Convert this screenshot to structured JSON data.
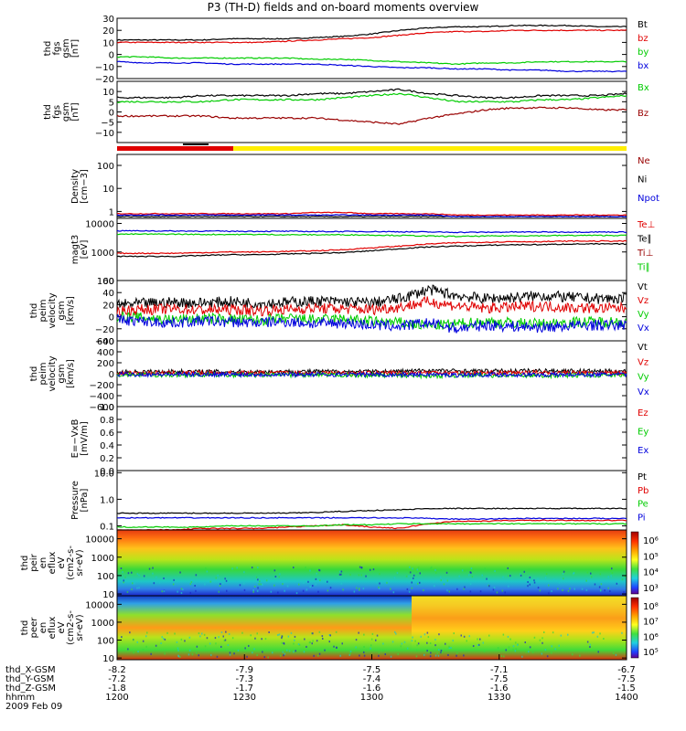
{
  "title": "P3 (TH-D) fields and on-board moments overview",
  "date_label": "2009 Feb 09",
  "colors": {
    "black": "#000000",
    "red": "#e00000",
    "green": "#00cc00",
    "blue": "#0000dd",
    "yellow": "#ffee00",
    "darkred": "#990000"
  },
  "xaxis": {
    "rows": [
      {
        "label": "thd_X-GSM",
        "values": [
          "-8.2",
          "-7.9",
          "-7.5",
          "-7.1",
          "-6.7"
        ]
      },
      {
        "label": "thd_Y-GSM",
        "values": [
          "-7.2",
          "-7.3",
          "-7.4",
          "-7.5",
          "-7.5"
        ]
      },
      {
        "label": "thd_Z-GSM",
        "values": [
          "-1.8",
          "-1.7",
          "-1.6",
          "-1.6",
          "-1.5"
        ]
      },
      {
        "label": "hhmm",
        "values": [
          "1200",
          "1230",
          "1300",
          "1330",
          "1400"
        ]
      }
    ]
  },
  "chart_data": [
    {
      "type": "line",
      "ylabel": [
        "thd",
        "fgs",
        "gsm",
        "[nT]"
      ],
      "ylim": [
        -20,
        30
      ],
      "yticks": [
        "30",
        "20",
        "10",
        "0",
        "−10",
        "−20"
      ],
      "legend": [
        {
          "name": "Bt",
          "color": "black"
        },
        {
          "name": "bz",
          "color": "red"
        },
        {
          "name": "by",
          "color": "green"
        },
        {
          "name": "bx",
          "color": "blue"
        }
      ],
      "series": [
        {
          "name": "Bt",
          "color": "black",
          "values": [
            12,
            12,
            12,
            12,
            13,
            13,
            13,
            14,
            15,
            17,
            20,
            22,
            23,
            23,
            24,
            24,
            24,
            23,
            23
          ]
        },
        {
          "name": "bz",
          "color": "red",
          "values": [
            10,
            10,
            10,
            10,
            10,
            10,
            11,
            12,
            13,
            14,
            16,
            18,
            19,
            19,
            20,
            20,
            20,
            20,
            20
          ]
        },
        {
          "name": "by",
          "color": "green",
          "values": [
            -2,
            -2,
            -3,
            -3,
            -3,
            -3,
            -3,
            -4,
            -4,
            -5,
            -6,
            -7,
            -8,
            -7,
            -7,
            -6,
            -6,
            -6,
            -6
          ]
        },
        {
          "name": "bx",
          "color": "blue",
          "values": [
            -6,
            -7,
            -7,
            -7,
            -8,
            -8,
            -8,
            -8,
            -9,
            -10,
            -11,
            -11,
            -12,
            -12,
            -13,
            -13,
            -14,
            -14,
            -14
          ]
        }
      ]
    },
    {
      "type": "line",
      "ylabel": [
        "thd",
        "fgs",
        "gsm",
        "[nT]"
      ],
      "ylim": [
        -15,
        15
      ],
      "yticks": [
        "10",
        "5",
        "0",
        "−5",
        "−10"
      ],
      "legend": [
        {
          "name": "Bx",
          "color": "green"
        },
        {
          "name": "Bz",
          "color": "darkred"
        }
      ],
      "series": [
        {
          "name": "Bt",
          "color": "black",
          "values": [
            7,
            7,
            7,
            8,
            8,
            8,
            8,
            9,
            9,
            10,
            11,
            9,
            8,
            7,
            7,
            8,
            8,
            8,
            9
          ]
        },
        {
          "name": "Bx",
          "color": "green",
          "values": [
            5,
            5,
            5,
            5,
            6,
            6,
            6,
            6,
            7,
            8,
            9,
            7,
            5,
            5,
            5,
            6,
            6,
            7,
            8
          ]
        },
        {
          "name": "Bz",
          "color": "darkred",
          "values": [
            -2,
            -2,
            -2,
            -2,
            -3,
            -3,
            -3,
            -3,
            -4,
            -5,
            -6,
            -3,
            -1,
            1,
            2,
            2,
            2,
            1,
            1
          ]
        }
      ]
    },
    {
      "type": "line",
      "ylabel": [
        "Density",
        "[cm−3]"
      ],
      "ylim": [
        0.5,
        300
      ],
      "scale": "log",
      "yticks": [
        "100",
        "10",
        "1"
      ],
      "legend": [
        {
          "name": "Ne",
          "color": "darkred"
        },
        {
          "name": "Ni",
          "color": "black"
        },
        {
          "name": "Npot",
          "color": "blue"
        }
      ],
      "series": [
        {
          "name": "Ne",
          "color": "red",
          "values": [
            0.8,
            0.8,
            0.8,
            0.8,
            0.8,
            0.8,
            0.8,
            0.9,
            0.9,
            0.8,
            0.8,
            0.8,
            0.7,
            0.7,
            0.7,
            0.7,
            0.7,
            0.7,
            0.7
          ]
        },
        {
          "name": "Ni",
          "color": "black",
          "values": [
            0.6,
            0.6,
            0.6,
            0.6,
            0.6,
            0.6,
            0.6,
            0.6,
            0.6,
            0.6,
            0.6,
            0.6,
            0.6,
            0.6,
            0.6,
            0.6,
            0.6,
            0.6,
            0.6
          ]
        },
        {
          "name": "Npot",
          "color": "blue",
          "values": [
            0.7,
            0.7,
            0.7,
            0.7,
            0.7,
            0.7,
            0.7,
            0.7,
            0.7,
            0.7,
            0.7,
            0.7,
            0.6,
            0.6,
            0.6,
            0.6,
            0.6,
            0.6,
            0.6
          ]
        }
      ]
    },
    {
      "type": "line",
      "ylabel": [
        "magt3",
        "[eV]"
      ],
      "ylim": [
        100,
        15000
      ],
      "scale": "log",
      "yticks": [
        "10000",
        "1000",
        "100"
      ],
      "legend": [
        {
          "name": "Te⊥",
          "color": "red"
        },
        {
          "name": "Te∥",
          "color": "black"
        },
        {
          "name": "Ti⊥",
          "color": "darkred"
        },
        {
          "name": "Ti∥",
          "color": "green"
        }
      ],
      "series": [
        {
          "name": "Ti⊥",
          "color": "blue",
          "values": [
            5500,
            5500,
            5400,
            5400,
            5300,
            5300,
            5300,
            5200,
            5200,
            5200,
            5100,
            5000,
            4900,
            4900,
            5000,
            5000,
            5000,
            5000,
            5000
          ]
        },
        {
          "name": "Ti∥",
          "color": "green",
          "values": [
            4200,
            4200,
            4200,
            4100,
            4100,
            4100,
            4000,
            4000,
            4000,
            3900,
            3800,
            3600,
            3500,
            3600,
            3700,
            3700,
            3800,
            3800,
            3800
          ]
        },
        {
          "name": "Te∥",
          "color": "black",
          "values": [
            700,
            700,
            700,
            750,
            800,
            800,
            850,
            900,
            950,
            1100,
            1300,
            1500,
            1600,
            1700,
            1800,
            1800,
            1900,
            1900,
            1900
          ]
        },
        {
          "name": "Te⊥",
          "color": "red",
          "values": [
            900,
            900,
            900,
            950,
            1000,
            1000,
            1050,
            1100,
            1200,
            1400,
            1600,
            1900,
            2100,
            2200,
            2300,
            2300,
            2400,
            2400,
            2400
          ]
        }
      ]
    },
    {
      "type": "line",
      "ylabel": [
        "thd",
        "peim",
        "velocity",
        "gsm",
        "[km/s]"
      ],
      "ylim": [
        -40,
        60
      ],
      "yticks": [
        "60",
        "40",
        "20",
        "0",
        "−20",
        "−40"
      ],
      "legend": [
        {
          "name": "Vt",
          "color": "black"
        },
        {
          "name": "Vz",
          "color": "red"
        },
        {
          "name": "Vy",
          "color": "green"
        },
        {
          "name": "Vx",
          "color": "blue"
        }
      ],
      "series": [
        {
          "name": "Vt",
          "color": "black",
          "values": [
            20,
            22,
            24,
            23,
            25,
            22,
            24,
            26,
            25,
            23,
            30,
            45,
            35,
            30,
            32,
            35,
            32,
            30,
            30
          ]
        },
        {
          "name": "Vz",
          "color": "red",
          "values": [
            10,
            12,
            13,
            11,
            12,
            10,
            12,
            14,
            13,
            12,
            16,
            25,
            18,
            14,
            16,
            18,
            15,
            14,
            14
          ]
        },
        {
          "name": "Vy",
          "color": "green",
          "values": [
            0,
            -2,
            -5,
            -3,
            -4,
            -6,
            -3,
            -5,
            -4,
            -8,
            -10,
            -15,
            -12,
            -8,
            -10,
            -12,
            -9,
            -8,
            -8
          ]
        },
        {
          "name": "Vx",
          "color": "blue",
          "values": [
            -5,
            -8,
            -10,
            -7,
            -9,
            -10,
            -8,
            -12,
            -10,
            -14,
            -16,
            -10,
            -20,
            -14,
            -16,
            -18,
            -15,
            -14,
            -14
          ]
        }
      ]
    },
    {
      "type": "line",
      "ylabel": [
        "thd",
        "peim",
        "velocity",
        "gsm",
        "[km/s]"
      ],
      "ylim": [
        -600,
        600
      ],
      "yticks": [
        "600",
        "400",
        "200",
        "0",
        "−200",
        "−400",
        "−600"
      ],
      "legend": [
        {
          "name": "Vt",
          "color": "black"
        },
        {
          "name": "Vz",
          "color": "red"
        },
        {
          "name": "Vy",
          "color": "green"
        },
        {
          "name": "Vx",
          "color": "blue"
        }
      ],
      "series": [
        {
          "name": "Vt",
          "color": "black",
          "values": [
            30,
            35,
            40,
            35,
            38,
            35,
            38,
            40,
            38,
            36,
            45,
            60,
            50,
            45,
            50,
            55,
            50,
            45,
            45
          ]
        },
        {
          "name": "Vz",
          "color": "red",
          "values": [
            10,
            12,
            14,
            12,
            13,
            12,
            13,
            15,
            14,
            13,
            16,
            24,
            18,
            15,
            17,
            18,
            16,
            15,
            15
          ]
        },
        {
          "name": "Vy",
          "color": "green",
          "values": [
            -20,
            -22,
            -25,
            -22,
            -24,
            -25,
            -22,
            -26,
            -24,
            -28,
            -30,
            -40,
            -35,
            -30,
            -32,
            -35,
            -30,
            -28,
            -28
          ]
        },
        {
          "name": "Vx",
          "color": "blue",
          "values": [
            -10,
            -12,
            -14,
            -12,
            -13,
            -14,
            -12,
            -15,
            -14,
            -16,
            -18,
            -15,
            -22,
            -16,
            -18,
            -20,
            -17,
            -16,
            -16
          ]
        }
      ]
    },
    {
      "type": "line",
      "ylabel": [
        "E=−VxB",
        "[mV/m]"
      ],
      "ylim": [
        0,
        1
      ],
      "yticks": [
        "1.0",
        "0.8",
        "0.6",
        "0.4",
        "0.2",
        "0.0"
      ],
      "legend": [
        {
          "name": "Ez",
          "color": "red"
        },
        {
          "name": "Ey",
          "color": "green"
        },
        {
          "name": "Ex",
          "color": "blue"
        }
      ],
      "series": []
    },
    {
      "type": "line",
      "ylabel": [
        "Pressure",
        "[nPa]"
      ],
      "ylim": [
        0.07,
        12
      ],
      "scale": "log",
      "yticks": [
        "10.0",
        "1.0",
        "0.1"
      ],
      "legend": [
        {
          "name": "Pt",
          "color": "black"
        },
        {
          "name": "Pb",
          "color": "red"
        },
        {
          "name": "Pe",
          "color": "green"
        },
        {
          "name": "Pi",
          "color": "blue"
        }
      ],
      "series": [
        {
          "name": "Pt",
          "color": "black",
          "values": [
            0.3,
            0.3,
            0.3,
            0.3,
            0.3,
            0.3,
            0.3,
            0.32,
            0.35,
            0.38,
            0.4,
            0.45,
            0.45,
            0.45,
            0.45,
            0.45,
            0.45,
            0.45,
            0.45
          ]
        },
        {
          "name": "Pi",
          "color": "blue",
          "values": [
            0.2,
            0.2,
            0.2,
            0.2,
            0.2,
            0.2,
            0.2,
            0.2,
            0.2,
            0.2,
            0.2,
            0.19,
            0.18,
            0.18,
            0.19,
            0.19,
            0.19,
            0.19,
            0.19
          ]
        },
        {
          "name": "Pb",
          "color": "red",
          "values": [
            0.07,
            0.07,
            0.07,
            0.08,
            0.08,
            0.08,
            0.09,
            0.1,
            0.11,
            0.09,
            0.08,
            0.12,
            0.15,
            0.15,
            0.16,
            0.16,
            0.16,
            0.16,
            0.16
          ]
        },
        {
          "name": "Pe",
          "color": "green",
          "values": [
            0.09,
            0.09,
            0.09,
            0.09,
            0.1,
            0.1,
            0.1,
            0.1,
            0.11,
            0.11,
            0.12,
            0.12,
            0.12,
            0.12,
            0.12,
            0.12,
            0.12,
            0.12,
            0.12
          ]
        }
      ]
    },
    {
      "type": "heatmap",
      "ylabel": [
        "thd",
        "peir",
        "en",
        "eflux",
        "eV",
        "(cm2-s-",
        "sr-eV)"
      ],
      "ylim": [
        8,
        30000
      ],
      "scale": "log",
      "yticks": [
        "10000",
        "1000",
        "100",
        "10"
      ],
      "colorbar": {
        "ticks": [
          "10⁶",
          "10⁵",
          "10⁴",
          "10³"
        ]
      }
    },
    {
      "type": "heatmap",
      "ylabel": [
        "thd",
        "peer",
        "en",
        "eflux",
        "eV",
        "(cm2-s-",
        "sr-eV)"
      ],
      "ylim": [
        8,
        30000
      ],
      "scale": "log",
      "yticks": [
        "10000",
        "1000",
        "100",
        "10"
      ],
      "colorbar": {
        "ticks": [
          "10⁸",
          "10⁷",
          "10⁶",
          "10⁵"
        ]
      }
    }
  ]
}
